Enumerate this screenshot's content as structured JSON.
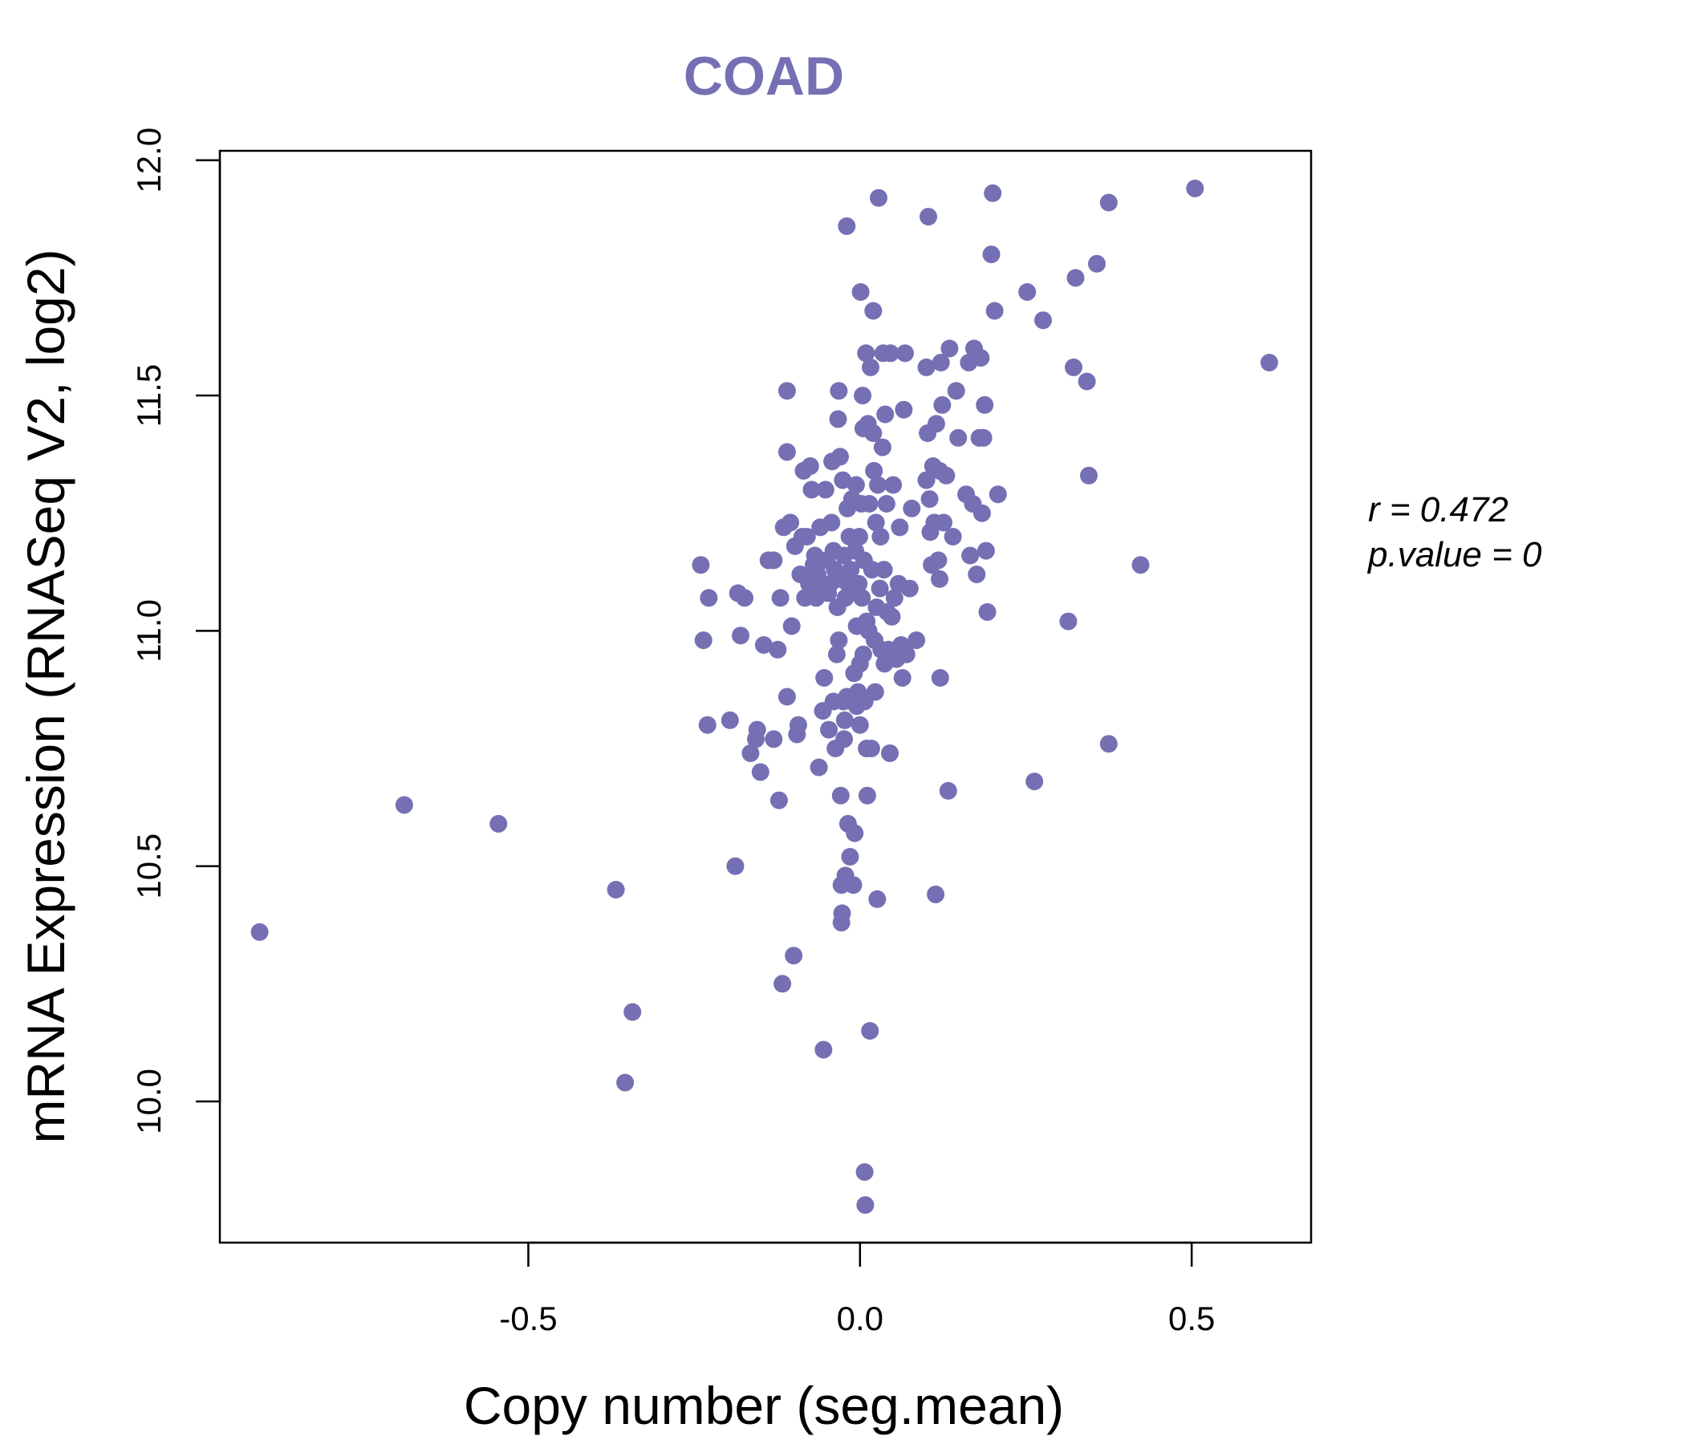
{
  "chart_data": {
    "type": "scatter",
    "title": "COAD",
    "xlabel": "Copy number (seg.mean)",
    "ylabel": "mRNA Expression (RNASeq V2, log2)",
    "xlim": [
      -0.965,
      0.68
    ],
    "ylim": [
      9.7,
      12.02
    ],
    "x_ticks": [
      "-0.5",
      "0.0",
      "0.5"
    ],
    "y_ticks": [
      "10.0",
      "10.5",
      "11.0",
      "11.5",
      "12.0"
    ],
    "grid": false,
    "legend": "none",
    "color": "#7570b3",
    "annotation": {
      "r_text": "r = 0.472",
      "p_text": "p.value = 0"
    },
    "points": [
      [
        -0.905,
        10.36
      ],
      [
        -0.687,
        10.63
      ],
      [
        -0.545,
        10.59
      ],
      [
        -0.368,
        10.45
      ],
      [
        -0.354,
        10.04
      ],
      [
        -0.343,
        10.19
      ],
      [
        -0.24,
        11.14
      ],
      [
        -0.228,
        11.07
      ],
      [
        -0.236,
        10.98
      ],
      [
        -0.23,
        10.8
      ],
      [
        -0.196,
        10.81
      ],
      [
        -0.188,
        10.5
      ],
      [
        -0.184,
        11.08
      ],
      [
        -0.174,
        11.07
      ],
      [
        -0.18,
        10.99
      ],
      [
        -0.165,
        10.74
      ],
      [
        -0.157,
        10.77
      ],
      [
        -0.155,
        10.79
      ],
      [
        -0.15,
        10.7
      ],
      [
        -0.145,
        10.97
      ],
      [
        -0.138,
        11.15
      ],
      [
        -0.13,
        11.15
      ],
      [
        -0.13,
        10.77
      ],
      [
        -0.124,
        10.96
      ],
      [
        -0.122,
        10.64
      ],
      [
        -0.12,
        11.07
      ],
      [
        -0.115,
        11.22
      ],
      [
        -0.117,
        10.25
      ],
      [
        -0.11,
        11.51
      ],
      [
        -0.11,
        11.38
      ],
      [
        -0.11,
        10.86
      ],
      [
        -0.105,
        11.23
      ],
      [
        -0.103,
        11.01
      ],
      [
        -0.1,
        10.31
      ],
      [
        -0.098,
        11.18
      ],
      [
        -0.095,
        10.78
      ],
      [
        -0.093,
        10.8
      ],
      [
        -0.09,
        11.12
      ],
      [
        -0.087,
        11.2
      ],
      [
        -0.085,
        11.34
      ],
      [
        -0.083,
        11.07
      ],
      [
        -0.08,
        11.2
      ],
      [
        -0.077,
        11.1
      ],
      [
        -0.075,
        11.35
      ],
      [
        -0.073,
        11.3
      ],
      [
        -0.07,
        11.14
      ],
      [
        -0.068,
        11.16
      ],
      [
        -0.066,
        11.07
      ],
      [
        -0.064,
        11.12
      ],
      [
        -0.062,
        10.71
      ],
      [
        -0.06,
        11.22
      ],
      [
        -0.058,
        11.09
      ],
      [
        -0.056,
        10.83
      ],
      [
        -0.055,
        10.11
      ],
      [
        -0.054,
        10.9
      ],
      [
        -0.052,
        11.3
      ],
      [
        -0.05,
        11.15
      ],
      [
        -0.048,
        11.08
      ],
      [
        -0.047,
        10.79
      ],
      [
        -0.045,
        11.1
      ],
      [
        -0.043,
        11.23
      ],
      [
        -0.042,
        11.36
      ],
      [
        -0.04,
        10.85
      ],
      [
        -0.04,
        11.17
      ],
      [
        -0.038,
        11.13
      ],
      [
        -0.037,
        10.75
      ],
      [
        -0.035,
        10.95
      ],
      [
        -0.034,
        11.05
      ],
      [
        -0.033,
        11.45
      ],
      [
        -0.032,
        11.51
      ],
      [
        -0.032,
        10.98
      ],
      [
        -0.03,
        11.37
      ],
      [
        -0.03,
        11.11
      ],
      [
        -0.029,
        10.65
      ],
      [
        -0.028,
        10.46
      ],
      [
        -0.028,
        10.38
      ],
      [
        -0.027,
        10.4
      ],
      [
        -0.026,
        11.32
      ],
      [
        -0.025,
        10.85
      ],
      [
        -0.024,
        10.77
      ],
      [
        -0.024,
        11.16
      ],
      [
        -0.023,
        10.81
      ],
      [
        -0.022,
        11.07
      ],
      [
        -0.022,
        10.48
      ],
      [
        -0.02,
        11.86
      ],
      [
        -0.02,
        10.86
      ],
      [
        -0.019,
        11.26
      ],
      [
        -0.018,
        11.1
      ],
      [
        -0.018,
        10.59
      ],
      [
        -0.016,
        11.2
      ],
      [
        -0.015,
        10.52
      ],
      [
        -0.014,
        11.13
      ],
      [
        -0.013,
        10.86
      ],
      [
        -0.012,
        11.28
      ],
      [
        -0.01,
        11.09
      ],
      [
        -0.01,
        10.46
      ],
      [
        -0.009,
        10.91
      ],
      [
        -0.008,
        10.57
      ],
      [
        -0.007,
        11.17
      ],
      [
        -0.006,
        11.31
      ],
      [
        -0.005,
        11.01
      ],
      [
        -0.005,
        10.84
      ],
      [
        -0.003,
        10.87
      ],
      [
        -0.002,
        11.1
      ],
      [
        -0.001,
        11.2
      ],
      [
        0,
        10.93
      ],
      [
        0,
        10.8
      ],
      [
        0.001,
        11.72
      ],
      [
        0.002,
        11.27
      ],
      [
        0.003,
        11.07
      ],
      [
        0.004,
        11.5
      ],
      [
        0.005,
        11.43
      ],
      [
        0.005,
        10.95
      ],
      [
        0.006,
        11.15
      ],
      [
        0.007,
        10.85
      ],
      [
        0.007,
        9.85
      ],
      [
        0.008,
        9.78
      ],
      [
        0.009,
        11.59
      ],
      [
        0.01,
        11.02
      ],
      [
        0.01,
        10.75
      ],
      [
        0.011,
        10.65
      ],
      [
        0.012,
        11.44
      ],
      [
        0.013,
        11.0
      ],
      [
        0.014,
        11.27
      ],
      [
        0.015,
        10.15
      ],
      [
        0.016,
        11.56
      ],
      [
        0.017,
        10.75
      ],
      [
        0.018,
        11.13
      ],
      [
        0.02,
        11.68
      ],
      [
        0.02,
        11.42
      ],
      [
        0.021,
        11.34
      ],
      [
        0.022,
        10.98
      ],
      [
        0.023,
        10.87
      ],
      [
        0.024,
        11.23
      ],
      [
        0.025,
        11.05
      ],
      [
        0.026,
        10.43
      ],
      [
        0.027,
        11.31
      ],
      [
        0.028,
        11.92
      ],
      [
        0.03,
        11.09
      ],
      [
        0.031,
        11.2
      ],
      [
        0.032,
        10.96
      ],
      [
        0.034,
        11.39
      ],
      [
        0.035,
        11.59
      ],
      [
        0.036,
        11.13
      ],
      [
        0.037,
        10.93
      ],
      [
        0.038,
        11.46
      ],
      [
        0.04,
        11.27
      ],
      [
        0.041,
        11.04
      ],
      [
        0.043,
        10.96
      ],
      [
        0.045,
        10.74
      ],
      [
        0.046,
        11.59
      ],
      [
        0.048,
        11.03
      ],
      [
        0.05,
        11.31
      ],
      [
        0.052,
        11.07
      ],
      [
        0.055,
        10.94
      ],
      [
        0.058,
        11.1
      ],
      [
        0.06,
        11.22
      ],
      [
        0.062,
        10.97
      ],
      [
        0.064,
        10.9
      ],
      [
        0.066,
        11.47
      ],
      [
        0.068,
        11.59
      ],
      [
        0.07,
        10.95
      ],
      [
        0.075,
        11.09
      ],
      [
        0.078,
        11.26
      ],
      [
        0.085,
        10.98
      ],
      [
        0.1,
        11.56
      ],
      [
        0.1,
        11.32
      ],
      [
        0.102,
        11.42
      ],
      [
        0.103,
        11.88
      ],
      [
        0.105,
        11.28
      ],
      [
        0.106,
        11.21
      ],
      [
        0.108,
        11.14
      ],
      [
        0.11,
        11.35
      ],
      [
        0.112,
        11.23
      ],
      [
        0.114,
        10.44
      ],
      [
        0.115,
        11.44
      ],
      [
        0.118,
        11.15
      ],
      [
        0.12,
        11.34
      ],
      [
        0.12,
        11.11
      ],
      [
        0.121,
        10.9
      ],
      [
        0.122,
        11.57
      ],
      [
        0.124,
        11.48
      ],
      [
        0.126,
        11.23
      ],
      [
        0.13,
        11.33
      ],
      [
        0.133,
        10.66
      ],
      [
        0.135,
        11.6
      ],
      [
        0.14,
        11.2
      ],
      [
        0.145,
        11.51
      ],
      [
        0.148,
        11.41
      ],
      [
        0.16,
        11.29
      ],
      [
        0.164,
        11.57
      ],
      [
        0.166,
        11.16
      ],
      [
        0.17,
        11.27
      ],
      [
        0.172,
        11.6
      ],
      [
        0.176,
        11.12
      ],
      [
        0.18,
        11.41
      ],
      [
        0.182,
        11.58
      ],
      [
        0.184,
        11.25
      ],
      [
        0.186,
        11.41
      ],
      [
        0.188,
        11.48
      ],
      [
        0.19,
        11.17
      ],
      [
        0.192,
        11.04
      ],
      [
        0.198,
        11.8
      ],
      [
        0.2,
        11.93
      ],
      [
        0.203,
        11.68
      ],
      [
        0.208,
        11.29
      ],
      [
        0.252,
        11.72
      ],
      [
        0.263,
        10.68
      ],
      [
        0.276,
        11.66
      ],
      [
        0.314,
        11.02
      ],
      [
        0.322,
        11.56
      ],
      [
        0.325,
        11.75
      ],
      [
        0.342,
        11.53
      ],
      [
        0.345,
        11.33
      ],
      [
        0.357,
        11.78
      ],
      [
        0.375,
        11.91
      ],
      [
        0.375,
        10.76
      ],
      [
        0.423,
        11.14
      ],
      [
        0.505,
        11.94
      ],
      [
        0.617,
        11.57
      ]
    ]
  }
}
